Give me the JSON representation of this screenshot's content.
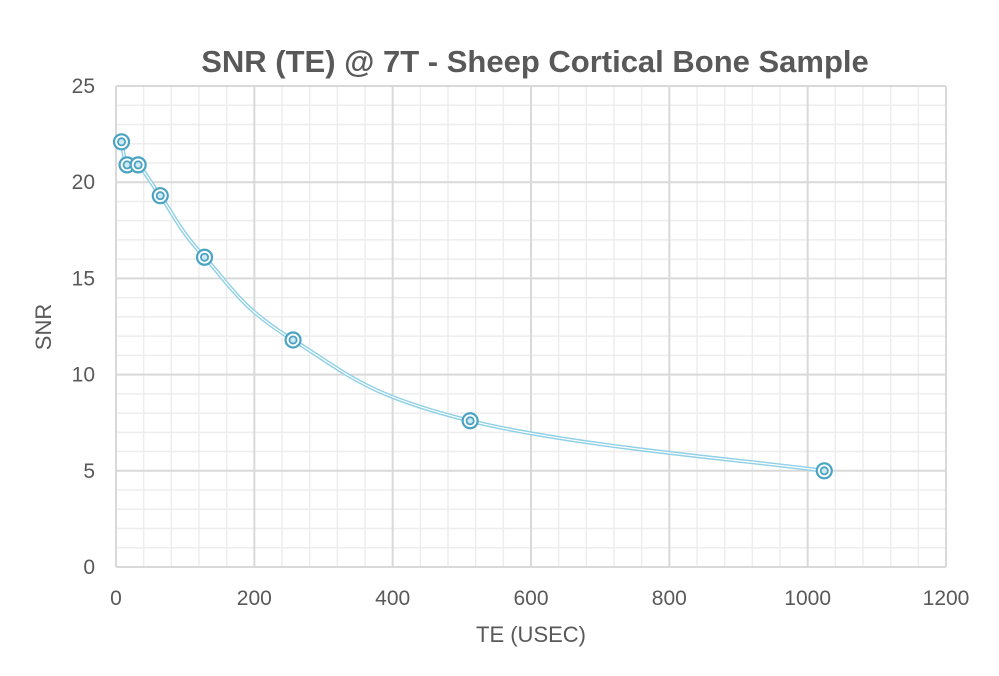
{
  "chart_data": {
    "type": "scatter",
    "title": "SNR (TE) @ 7T - Sheep Cortical Bone Sample",
    "xlabel": "TE (USEC)",
    "ylabel": "SNR",
    "xlim": [
      0,
      1200
    ],
    "ylim": [
      0,
      25
    ],
    "xticks": [
      0,
      200,
      400,
      600,
      800,
      1000,
      1200
    ],
    "yticks": [
      0,
      5,
      10,
      15,
      20,
      25
    ],
    "x_minor_step": 40,
    "y_minor_step": 1,
    "grid": true,
    "legend": "none",
    "series": [
      {
        "name": "SNR",
        "line": "smooth",
        "marker": "double-circle",
        "color": "#4aa3c3",
        "line_color": "#8fd0e6",
        "x": [
          8,
          16,
          32,
          64,
          128,
          256,
          512,
          1024
        ],
        "y": [
          22.1,
          20.9,
          20.9,
          19.3,
          16.1,
          11.8,
          7.6,
          5.0
        ]
      }
    ],
    "colors": {
      "text": "#595959",
      "major_grid": "#d9d9d9",
      "minor_grid": "#ededed"
    }
  }
}
